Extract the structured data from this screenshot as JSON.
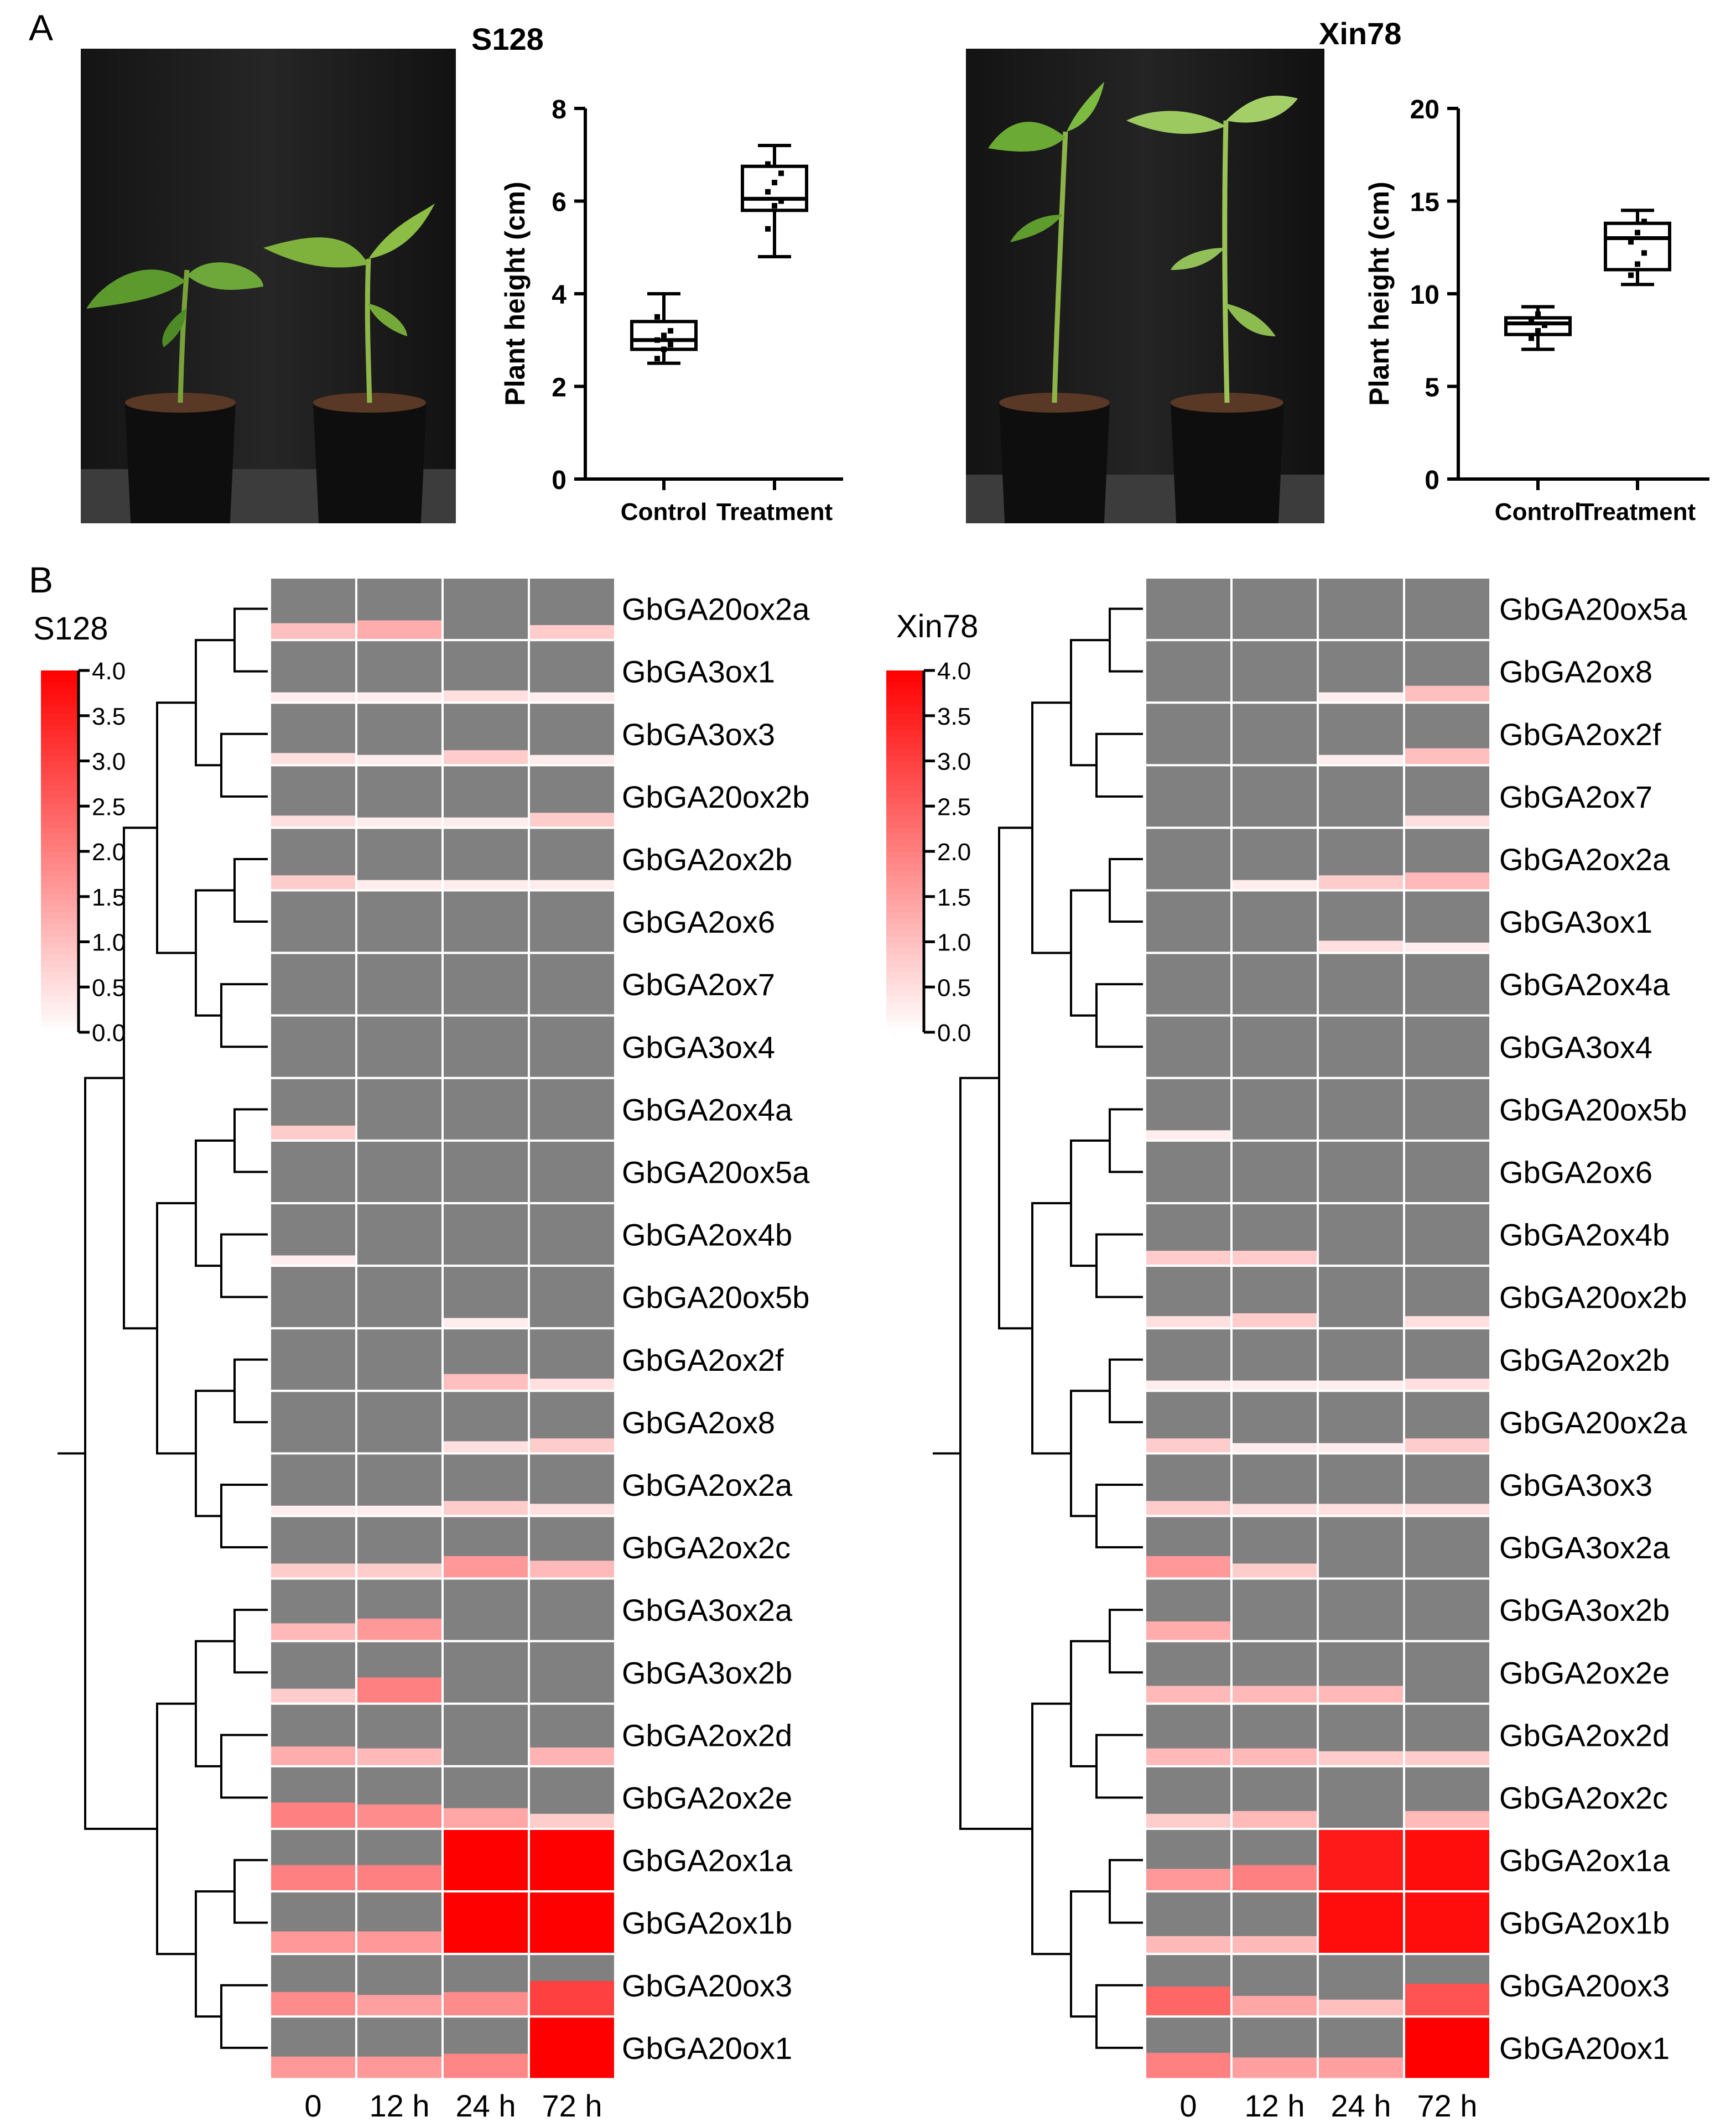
{
  "panel_labels": [
    "A",
    "B"
  ],
  "colors": {
    "low_hex": "#ffffff",
    "high_hex": "#ff0000",
    "no_data_hex": "#808080"
  },
  "chart_data": [
    {
      "type": "box",
      "title": "S128",
      "xlabel": "",
      "ylabel": "Plant height (cm)",
      "categories": [
        "Control",
        "Treatment"
      ],
      "ylim": [
        0,
        8
      ],
      "yticks": [
        0,
        2,
        4,
        6,
        8
      ],
      "boxes": [
        {
          "min": 2.5,
          "q1": 2.8,
          "median": 3.0,
          "q3": 3.4,
          "max": 4.0,
          "points": [
            2.6,
            2.8,
            2.9,
            3.0,
            3.1,
            3.2,
            3.5
          ]
        },
        {
          "min": 4.8,
          "q1": 5.8,
          "median": 6.05,
          "q3": 6.75,
          "max": 7.2,
          "points": [
            5.4,
            5.9,
            6.0,
            6.2,
            6.4,
            6.6,
            6.8
          ]
        }
      ]
    },
    {
      "type": "box",
      "title": "Xin78",
      "xlabel": "",
      "ylabel": "Plant height (cm)",
      "categories": [
        "Control",
        "Treatment"
      ],
      "ylim": [
        0,
        20
      ],
      "yticks": [
        0,
        5,
        10,
        15,
        20
      ],
      "boxes": [
        {
          "min": 7.0,
          "q1": 7.8,
          "median": 8.4,
          "q3": 8.7,
          "max": 9.3,
          "points": [
            7.6,
            8.0,
            8.3,
            8.5,
            8.9
          ]
        },
        {
          "min": 10.5,
          "q1": 11.3,
          "median": 13.0,
          "q3": 13.8,
          "max": 14.5,
          "points": [
            11.0,
            11.6,
            12.2,
            12.8,
            13.3,
            13.9
          ]
        }
      ]
    },
    {
      "type": "heatmap",
      "title": "S128",
      "columns": [
        "0",
        "12 h",
        "24 h",
        "72 h"
      ],
      "colorbar": {
        "min": 0,
        "max": 4,
        "ticks": [
          "0.0",
          "0.5",
          "1.0",
          "1.5",
          "2.0",
          "2.5",
          "3.0",
          "3.5",
          "4.0"
        ]
      },
      "rows": [
        {
          "gene": "GbGA20ox2a",
          "values": [
            1.0,
            1.3,
            0.0,
            0.8
          ]
        },
        {
          "gene": "GbGA3ox1",
          "values": [
            0.3,
            0.3,
            0.5,
            0.3
          ]
        },
        {
          "gene": "GbGA3ox3",
          "values": [
            0.5,
            0.3,
            0.8,
            0.3
          ]
        },
        {
          "gene": "GbGA20ox2b",
          "values": [
            0.5,
            0.3,
            0.3,
            0.8
          ]
        },
        {
          "gene": "GbGA2ox2b",
          "values": [
            0.8,
            0.3,
            0.3,
            0.3
          ]
        },
        {
          "gene": "GbGA2ox6",
          "values": [
            0.0,
            0.0,
            0.0,
            0.0
          ]
        },
        {
          "gene": "GbGA2ox7",
          "values": [
            0.0,
            0.0,
            0.0,
            0.0
          ]
        },
        {
          "gene": "GbGA3ox4",
          "values": [
            0.0,
            0.0,
            0.0,
            0.0
          ]
        },
        {
          "gene": "GbGA2ox4a",
          "values": [
            0.8,
            0.0,
            0.0,
            0.0
          ]
        },
        {
          "gene": "GbGA20ox5a",
          "values": [
            0.0,
            0.0,
            0.0,
            0.0
          ]
        },
        {
          "gene": "GbGA2ox4b",
          "values": [
            0.3,
            0.0,
            0.0,
            0.0
          ]
        },
        {
          "gene": "GbGA20ox5b",
          "values": [
            0.0,
            0.0,
            0.3,
            0.0
          ]
        },
        {
          "gene": "GbGA2ox2f",
          "values": [
            0.0,
            0.0,
            1.0,
            0.5
          ]
        },
        {
          "gene": "GbGA2ox8",
          "values": [
            0.0,
            0.0,
            0.5,
            0.8
          ]
        },
        {
          "gene": "GbGA2ox2a",
          "values": [
            0.3,
            0.3,
            0.8,
            0.5
          ]
        },
        {
          "gene": "GbGA2ox2c",
          "values": [
            0.8,
            0.8,
            1.6,
            1.1
          ]
        },
        {
          "gene": "GbGA3ox2a",
          "values": [
            1.1,
            1.6,
            0.0,
            0.0
          ]
        },
        {
          "gene": "GbGA3ox2b",
          "values": [
            0.8,
            2.0,
            0.0,
            0.0
          ]
        },
        {
          "gene": "GbGA2ox2d",
          "values": [
            1.3,
            1.1,
            0.0,
            1.2
          ]
        },
        {
          "gene": "GbGA2ox2e",
          "values": [
            2.0,
            1.8,
            1.4,
            0.8
          ]
        },
        {
          "gene": "GbGA2ox1a",
          "values": [
            2.0,
            2.0,
            4.0,
            4.0
          ]
        },
        {
          "gene": "GbGA2ox1b",
          "values": [
            1.6,
            1.6,
            4.0,
            4.0
          ]
        },
        {
          "gene": "GbGA20ox3",
          "values": [
            1.8,
            1.5,
            1.8,
            3.0
          ]
        },
        {
          "gene": "GbGA20ox1",
          "values": [
            1.6,
            1.6,
            1.9,
            4.0
          ]
        }
      ]
    },
    {
      "type": "heatmap",
      "title": "Xin78",
      "columns": [
        "0",
        "12 h",
        "24 h",
        "72 h"
      ],
      "colorbar": {
        "min": 0,
        "max": 4,
        "ticks": [
          "0.0",
          "0.5",
          "1.0",
          "1.5",
          "2.0",
          "2.5",
          "3.0",
          "3.5",
          "4.0"
        ]
      },
      "rows": [
        {
          "gene": "GbGA20ox5a",
          "values": [
            0.0,
            0.0,
            0.0,
            0.0
          ]
        },
        {
          "gene": "GbGA2ox8",
          "values": [
            0.0,
            0.0,
            0.3,
            1.0
          ]
        },
        {
          "gene": "GbGA2ox2f",
          "values": [
            0.0,
            0.0,
            0.3,
            1.0
          ]
        },
        {
          "gene": "GbGA2ox7",
          "values": [
            0.0,
            0.0,
            0.0,
            0.5
          ]
        },
        {
          "gene": "GbGA2ox2a",
          "values": [
            0.0,
            0.3,
            0.8,
            1.1
          ]
        },
        {
          "gene": "GbGA3ox1",
          "values": [
            0.0,
            0.0,
            0.5,
            0.3
          ]
        },
        {
          "gene": "GbGA2ox4a",
          "values": [
            0.0,
            0.0,
            0.0,
            0.0
          ]
        },
        {
          "gene": "GbGA3ox4",
          "values": [
            0.0,
            0.0,
            0.0,
            0.0
          ]
        },
        {
          "gene": "GbGA20ox5b",
          "values": [
            0.3,
            0.0,
            0.0,
            0.0
          ]
        },
        {
          "gene": "GbGA2ox6",
          "values": [
            0.0,
            0.0,
            0.0,
            0.0
          ]
        },
        {
          "gene": "GbGA2ox4b",
          "values": [
            0.8,
            0.8,
            0.0,
            0.0
          ]
        },
        {
          "gene": "GbGA20ox2b",
          "values": [
            0.5,
            0.8,
            0.0,
            0.5
          ]
        },
        {
          "gene": "GbGA2ox2b",
          "values": [
            0.3,
            0.3,
            0.3,
            0.5
          ]
        },
        {
          "gene": "GbGA20ox2a",
          "values": [
            0.8,
            0.3,
            0.3,
            0.8
          ]
        },
        {
          "gene": "GbGA3ox3",
          "values": [
            0.8,
            0.5,
            0.5,
            0.5
          ]
        },
        {
          "gene": "GbGA3ox2a",
          "values": [
            1.6,
            0.8,
            0.0,
            0.0
          ]
        },
        {
          "gene": "GbGA3ox2b",
          "values": [
            1.3,
            0.0,
            0.0,
            0.0
          ]
        },
        {
          "gene": "GbGA2ox2e",
          "values": [
            1.1,
            1.1,
            1.1,
            0.0
          ]
        },
        {
          "gene": "GbGA2ox2d",
          "values": [
            1.1,
            1.1,
            0.8,
            0.8
          ]
        },
        {
          "gene": "GbGA2ox2c",
          "values": [
            0.8,
            1.1,
            0.0,
            1.1
          ]
        },
        {
          "gene": "GbGA2ox1a",
          "values": [
            1.6,
            2.0,
            3.6,
            3.8
          ]
        },
        {
          "gene": "GbGA2ox1b",
          "values": [
            1.1,
            1.1,
            3.8,
            3.8
          ]
        },
        {
          "gene": "GbGA20ox3",
          "values": [
            2.4,
            1.4,
            1.0,
            2.7
          ]
        },
        {
          "gene": "GbGA20ox1",
          "values": [
            2.0,
            1.5,
            1.5,
            4.0
          ]
        }
      ]
    }
  ]
}
